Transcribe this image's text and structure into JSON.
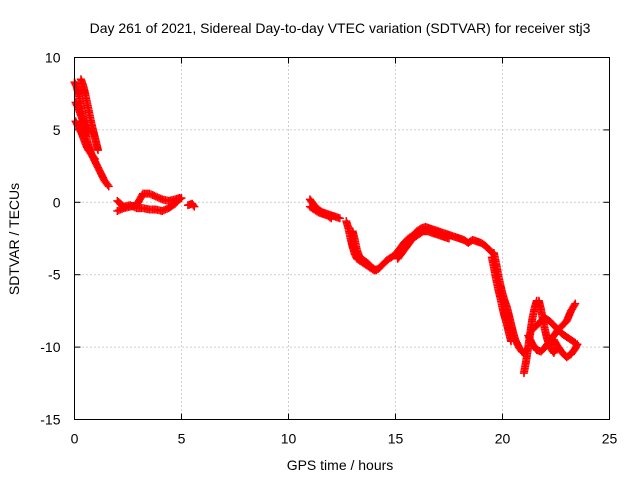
{
  "chart_data": {
    "type": "scatter",
    "title": "Day 261 of 2021, Sidereal Day-to-day VTEC variation (SDTVAR) for receiver stj3",
    "xlabel": "GPS time / hours",
    "ylabel": "SDTVAR / TECUs",
    "xlim": [
      0,
      25
    ],
    "ylim": [
      -15,
      10
    ],
    "xticks": [
      0,
      5,
      10,
      15,
      20,
      25
    ],
    "yticks": [
      -15,
      -10,
      -5,
      0,
      5,
      10
    ],
    "xtick_labels": [
      "0",
      "5",
      "10",
      "15",
      "20",
      "25"
    ],
    "ytick_labels": [
      "-15",
      "-10",
      "-5",
      "0",
      "5",
      "10"
    ],
    "grid": true,
    "marker": "+",
    "color": "#ff0000",
    "series": [
      {
        "name": "SDTVAR",
        "segments": [
          [
            [
              0.0,
              8.3
            ],
            [
              0.1,
              8.0
            ],
            [
              0.2,
              7.4
            ],
            [
              0.3,
              6.6
            ],
            [
              0.4,
              5.8
            ],
            [
              0.5,
              5.0
            ],
            [
              0.6,
              4.2
            ],
            [
              0.7,
              3.7
            ],
            [
              0.8,
              3.3
            ],
            [
              0.9,
              3.0
            ],
            [
              1.0,
              2.7
            ],
            [
              1.1,
              2.4
            ],
            [
              1.2,
              2.1
            ],
            [
              1.3,
              1.8
            ],
            [
              1.4,
              1.5
            ],
            [
              1.5,
              1.3
            ],
            [
              1.6,
              1.1
            ]
          ],
          [
            [
              0.05,
              5.6
            ],
            [
              0.15,
              5.3
            ],
            [
              0.25,
              5.0
            ],
            [
              0.35,
              4.7
            ],
            [
              0.45,
              4.3
            ],
            [
              0.55,
              3.9
            ],
            [
              0.65,
              3.6
            ],
            [
              0.75,
              3.4
            ],
            [
              0.85,
              3.2
            ],
            [
              0.95,
              3.0
            ]
          ],
          [
            [
              0.3,
              8.5
            ],
            [
              0.4,
              8.1
            ],
            [
              0.5,
              7.5
            ],
            [
              0.6,
              6.8
            ],
            [
              0.7,
              6.1
            ],
            [
              0.8,
              5.4
            ],
            [
              0.9,
              4.8
            ],
            [
              1.0,
              4.2
            ],
            [
              1.1,
              3.6
            ]
          ],
          [
            [
              0.05,
              6.9
            ],
            [
              0.15,
              6.6
            ],
            [
              0.25,
              6.2
            ],
            [
              0.35,
              5.8
            ],
            [
              0.45,
              5.4
            ],
            [
              0.55,
              5.1
            ],
            [
              0.65,
              4.8
            ]
          ],
          [
            [
              2.0,
              0.1
            ],
            [
              2.3,
              -0.3
            ],
            [
              2.6,
              -0.2
            ],
            [
              2.9,
              -0.4
            ],
            [
              3.2,
              -0.4
            ],
            [
              3.5,
              -0.5
            ],
            [
              3.8,
              -0.5
            ],
            [
              4.1,
              -0.6
            ],
            [
              4.4,
              -0.4
            ],
            [
              4.7,
              -0.1
            ],
            [
              4.9,
              0.2
            ],
            [
              5.0,
              0.3
            ]
          ],
          [
            [
              2.0,
              -0.6
            ],
            [
              2.3,
              -0.4
            ],
            [
              2.6,
              -0.3
            ],
            [
              2.9,
              -0.2
            ],
            [
              3.2,
              0.6
            ],
            [
              3.5,
              0.6
            ],
            [
              3.8,
              0.4
            ],
            [
              4.1,
              0.2
            ],
            [
              4.4,
              0.1
            ],
            [
              4.7,
              0.2
            ],
            [
              4.9,
              0.3
            ]
          ],
          [
            [
              5.3,
              -0.2
            ],
            [
              5.5,
              -0.1
            ],
            [
              5.6,
              -0.3
            ]
          ],
          [
            [
              11.0,
              0.2
            ],
            [
              11.2,
              -0.2
            ],
            [
              11.4,
              -0.5
            ],
            [
              11.6,
              -0.7
            ],
            [
              11.8,
              -0.8
            ],
            [
              12.0,
              -0.9
            ],
            [
              12.2,
              -1.0
            ],
            [
              12.4,
              -1.1
            ]
          ],
          [
            [
              11.0,
              -0.3
            ],
            [
              11.2,
              -0.5
            ],
            [
              11.4,
              -0.7
            ],
            [
              11.6,
              -0.8
            ],
            [
              11.8,
              -0.9
            ],
            [
              12.0,
              -1.1
            ]
          ],
          [
            [
              12.7,
              -1.3
            ],
            [
              12.8,
              -1.8
            ],
            [
              12.9,
              -2.5
            ],
            [
              13.0,
              -3.1
            ],
            [
              13.1,
              -3.6
            ],
            [
              13.2,
              -3.9
            ],
            [
              13.4,
              -4.1
            ],
            [
              13.6,
              -4.3
            ],
            [
              13.8,
              -4.5
            ],
            [
              14.0,
              -4.7
            ],
            [
              14.2,
              -4.6
            ],
            [
              14.4,
              -4.3
            ],
            [
              14.6,
              -4.0
            ],
            [
              14.8,
              -3.8
            ],
            [
              15.0,
              -3.6
            ]
          ],
          [
            [
              13.0,
              -2.0
            ],
            [
              13.1,
              -2.6
            ],
            [
              13.2,
              -3.3
            ],
            [
              13.3,
              -3.7
            ],
            [
              13.5,
              -4.0
            ],
            [
              13.7,
              -4.2
            ],
            [
              13.9,
              -4.5
            ],
            [
              14.1,
              -4.7
            ]
          ],
          [
            [
              15.0,
              -3.6
            ],
            [
              15.2,
              -3.2
            ],
            [
              15.4,
              -2.8
            ],
            [
              15.6,
              -2.5
            ],
            [
              15.8,
              -2.3
            ],
            [
              16.0,
              -2.0
            ],
            [
              16.2,
              -1.8
            ],
            [
              16.4,
              -1.7
            ],
            [
              16.6,
              -1.8
            ],
            [
              16.8,
              -1.9
            ],
            [
              17.0,
              -2.0
            ],
            [
              17.2,
              -2.1
            ],
            [
              17.4,
              -2.2
            ],
            [
              17.6,
              -2.3
            ],
            [
              17.8,
              -2.4
            ],
            [
              18.0,
              -2.5
            ],
            [
              18.2,
              -2.6
            ],
            [
              18.4,
              -2.8
            ],
            [
              18.6,
              -2.6
            ],
            [
              18.8,
              -2.7
            ],
            [
              19.0,
              -2.8
            ],
            [
              19.2,
              -3.0
            ],
            [
              19.4,
              -3.3
            ],
            [
              19.6,
              -3.6
            ]
          ],
          [
            [
              15.1,
              -3.9
            ],
            [
              15.3,
              -3.5
            ],
            [
              15.5,
              -3.1
            ],
            [
              15.7,
              -2.7
            ],
            [
              15.9,
              -2.4
            ],
            [
              16.1,
              -2.2
            ],
            [
              16.3,
              -2.0
            ],
            [
              16.5,
              -2.0
            ],
            [
              16.7,
              -2.1
            ],
            [
              16.9,
              -2.2
            ],
            [
              17.1,
              -2.3
            ],
            [
              17.3,
              -2.4
            ],
            [
              17.5,
              -2.5
            ]
          ],
          [
            [
              19.6,
              -3.5
            ],
            [
              19.7,
              -4.2
            ],
            [
              19.8,
              -5.0
            ],
            [
              19.9,
              -5.7
            ],
            [
              20.0,
              -6.3
            ],
            [
              20.1,
              -6.8
            ],
            [
              20.2,
              -7.2
            ],
            [
              20.3,
              -7.8
            ],
            [
              20.4,
              -8.4
            ],
            [
              20.5,
              -9.0
            ],
            [
              20.6,
              -9.5
            ],
            [
              20.7,
              -9.8
            ],
            [
              20.8,
              -10.1
            ],
            [
              20.9,
              -10.3
            ],
            [
              21.0,
              -10.4
            ],
            [
              21.1,
              -10.2
            ]
          ],
          [
            [
              19.5,
              -3.8
            ],
            [
              19.6,
              -4.5
            ],
            [
              19.7,
              -5.3
            ],
            [
              19.8,
              -6.0
            ],
            [
              19.9,
              -6.6
            ],
            [
              20.0,
              -7.3
            ],
            [
              20.1,
              -7.9
            ],
            [
              20.2,
              -8.4
            ],
            [
              20.3,
              -9.0
            ],
            [
              20.4,
              -9.6
            ]
          ],
          [
            [
              21.0,
              -11.8
            ],
            [
              21.1,
              -11.0
            ],
            [
              21.2,
              -10.0
            ],
            [
              21.3,
              -9.0
            ],
            [
              21.4,
              -8.0
            ],
            [
              21.5,
              -7.3
            ],
            [
              21.6,
              -6.8
            ],
            [
              21.7,
              -6.8
            ],
            [
              21.8,
              -7.4
            ],
            [
              21.9,
              -8.2
            ],
            [
              22.0,
              -8.9
            ],
            [
              22.1,
              -9.5
            ],
            [
              22.2,
              -9.9
            ],
            [
              22.3,
              -10.2
            ],
            [
              22.4,
              -10.4
            ],
            [
              22.5,
              -10.1
            ]
          ],
          [
            [
              21.2,
              -9.2
            ],
            [
              21.4,
              -9.8
            ],
            [
              21.6,
              -10.2
            ],
            [
              21.8,
              -10.3
            ],
            [
              22.0,
              -10.0
            ],
            [
              22.2,
              -9.6
            ],
            [
              22.4,
              -9.2
            ],
            [
              22.6,
              -8.8
            ],
            [
              22.8,
              -8.5
            ],
            [
              23.0,
              -8.2
            ],
            [
              23.2,
              -7.5
            ],
            [
              23.4,
              -7.0
            ]
          ],
          [
            [
              21.4,
              -8.8
            ],
            [
              21.6,
              -8.5
            ],
            [
              21.8,
              -8.2
            ],
            [
              22.0,
              -8.0
            ],
            [
              22.2,
              -8.2
            ],
            [
              22.4,
              -8.5
            ],
            [
              22.6,
              -8.8
            ],
            [
              22.8,
              -9.1
            ],
            [
              23.0,
              -9.3
            ],
            [
              23.2,
              -9.5
            ],
            [
              23.4,
              -9.7
            ]
          ],
          [
            [
              22.4,
              -9.5
            ],
            [
              22.6,
              -10.0
            ],
            [
              22.8,
              -10.4
            ],
            [
              23.0,
              -10.7
            ],
            [
              23.2,
              -10.5
            ],
            [
              23.4,
              -10.1
            ],
            [
              23.5,
              -9.8
            ]
          ]
        ]
      }
    ]
  }
}
